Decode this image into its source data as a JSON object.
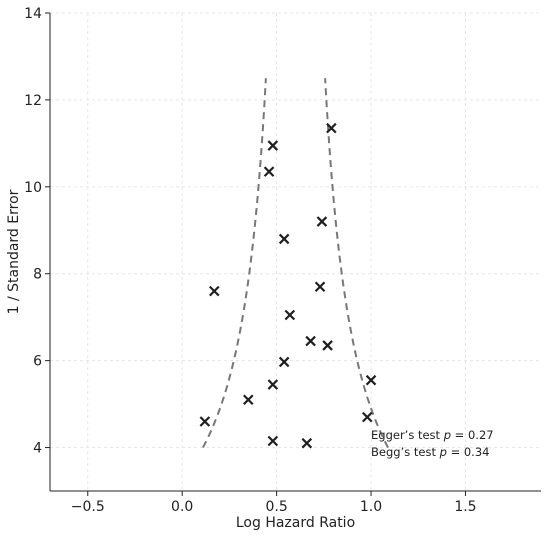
{
  "chart_data": {
    "type": "scatter",
    "title": "",
    "xlabel": "Log Hazard Ratio",
    "ylabel": "1 / Standard Error",
    "xlim": [
      -0.7,
      1.9
    ],
    "ylim": [
      3.0,
      14.0
    ],
    "x_ticks": [
      -0.5,
      0.0,
      0.5,
      1.0,
      1.5
    ],
    "x_tick_labels": [
      "−0.5",
      "0.0",
      "0.5",
      "1.0",
      "1.5"
    ],
    "y_ticks": [
      4,
      6,
      8,
      10,
      12,
      14
    ],
    "y_tick_labels": [
      "4",
      "6",
      "8",
      "10",
      "12",
      "14"
    ],
    "grid": true,
    "marker": "x",
    "points": [
      {
        "x": 0.48,
        "y": 10.95
      },
      {
        "x": 0.79,
        "y": 11.35
      },
      {
        "x": 0.46,
        "y": 10.35
      },
      {
        "x": 0.74,
        "y": 9.2
      },
      {
        "x": 0.54,
        "y": 8.8
      },
      {
        "x": 0.17,
        "y": 7.6
      },
      {
        "x": 0.73,
        "y": 7.7
      },
      {
        "x": 0.57,
        "y": 7.05
      },
      {
        "x": 0.68,
        "y": 6.45
      },
      {
        "x": 0.77,
        "y": 6.35
      },
      {
        "x": 0.54,
        "y": 5.97
      },
      {
        "x": 0.48,
        "y": 5.45
      },
      {
        "x": 0.35,
        "y": 5.1
      },
      {
        "x": 1.0,
        "y": 5.55
      },
      {
        "x": 0.12,
        "y": 4.6
      },
      {
        "x": 0.98,
        "y": 4.7
      },
      {
        "x": 0.48,
        "y": 4.15
      },
      {
        "x": 0.66,
        "y": 4.1
      }
    ],
    "funnel": {
      "center": 0.6,
      "curve_factor": 1.96,
      "y_range": [
        4.0,
        12.5
      ]
    },
    "annotations": [
      {
        "prefix": "Egger’s test ",
        "var": "p",
        "suffix": " = 0.27"
      },
      {
        "prefix": "Begg’s test ",
        "var": "p",
        "suffix": " = 0.34"
      }
    ]
  }
}
